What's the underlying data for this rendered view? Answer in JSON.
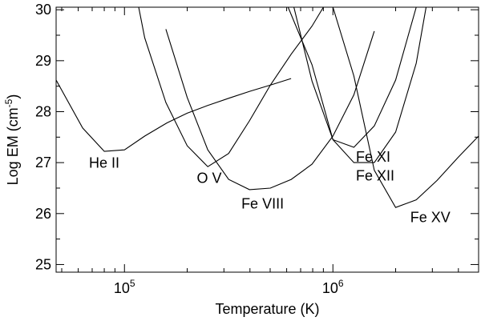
{
  "chart_data": {
    "type": "line",
    "xlabel": "Temperature (K)",
    "ylabel": {
      "prefix": "Log EM (cm",
      "sup": "-5",
      "suffix": ")"
    },
    "x_scale": "log",
    "xlim": [
      47000,
      5000000
    ],
    "ylim": [
      24.85,
      30.05
    ],
    "grid": false,
    "x_ticks": [
      {
        "value": 100000,
        "base": "10",
        "exp": "5"
      },
      {
        "value": 1000000,
        "base": "10",
        "exp": "6"
      }
    ],
    "y_ticks": [
      25,
      26,
      27,
      28,
      29,
      30
    ],
    "y_tick_labels": [
      "25",
      "26",
      "27",
      "28",
      "29",
      "30"
    ],
    "series": [
      {
        "label": "He II",
        "x": [
          47000,
          63000,
          80000,
          100000,
          125000,
          160000,
          200000,
          250000,
          320000,
          400000,
          500000,
          630000
        ],
        "y": [
          28.62,
          27.68,
          27.22,
          27.25,
          27.52,
          27.78,
          27.97,
          28.12,
          28.27,
          28.4,
          28.52,
          28.65
        ]
      },
      {
        "label": "O V",
        "x": [
          117000,
          125000,
          158000,
          200000,
          251000,
          316000,
          398000,
          501000,
          631000,
          794000,
          900000
        ],
        "y": [
          30.05,
          29.45,
          28.18,
          27.33,
          26.92,
          27.18,
          27.82,
          28.52,
          29.13,
          29.68,
          30.05
        ]
      },
      {
        "label": "Fe VIII",
        "x": [
          158000,
          200000,
          251000,
          316000,
          398000,
          501000,
          631000,
          794000,
          1000000,
          1260000,
          1580000
        ],
        "y": [
          29.62,
          28.28,
          27.25,
          26.67,
          26.47,
          26.5,
          26.67,
          26.97,
          27.52,
          28.33,
          29.58
        ]
      },
      {
        "label": "Fe XI",
        "x": [
          650000,
          794000,
          1000000,
          1260000,
          1580000,
          2000000,
          2510000,
          3160000,
          3981000,
          5000000
        ],
        "y": [
          30.05,
          28.6,
          27.45,
          27.3,
          27.72,
          28.62,
          30.05,
          30.05,
          30.05,
          30.05
        ]
      },
      {
        "label": "Fe XII",
        "x": [
          610000,
          794000,
          1000000,
          1260000,
          1580000,
          2000000,
          2510000,
          2800000
        ],
        "y": [
          30.05,
          28.92,
          27.45,
          27.0,
          27.0,
          27.6,
          28.95,
          30.05
        ]
      },
      {
        "label": "Fe XV",
        "x": [
          1000000,
          1260000,
          1580000,
          2000000,
          2510000,
          3160000,
          3981000,
          5000000
        ],
        "y": [
          30.05,
          28.7,
          26.85,
          26.12,
          26.27,
          26.65,
          27.1,
          27.52
        ]
      }
    ],
    "annotations": [
      {
        "text": "He II",
        "x": 80000,
        "y": 26.9
      },
      {
        "text": "O V",
        "x": 255000,
        "y": 26.6
      },
      {
        "text": "Fe VIII",
        "x": 460000,
        "y": 26.1
      },
      {
        "text": "Fe XI",
        "x": 1290000,
        "y": 27.02
      },
      {
        "text": "Fe XII",
        "x": 1290000,
        "y": 26.65
      },
      {
        "text": "Fe XV",
        "x": 2350000,
        "y": 25.83
      }
    ]
  }
}
